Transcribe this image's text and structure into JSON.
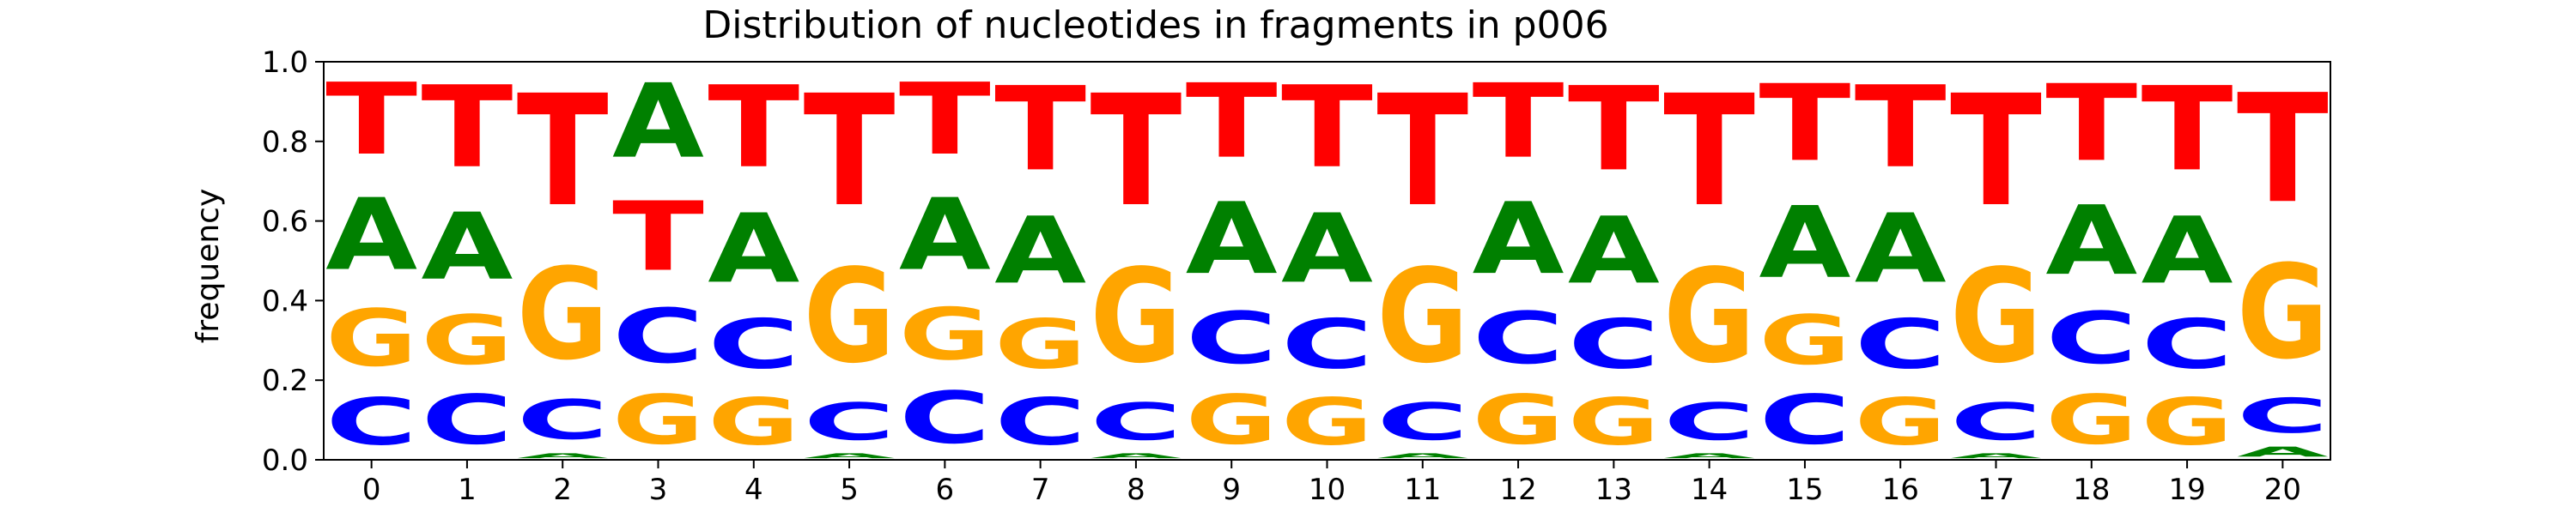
{
  "chart_data": {
    "type": "sequence-logo",
    "title": "Distribution of nucleotides in fragments in p006",
    "xlabel": "",
    "ylabel": "frequency",
    "ylim": [
      0,
      1
    ],
    "yticks": [
      "0.0",
      "0.2",
      "0.4",
      "0.6",
      "0.8",
      "1.0"
    ],
    "grid": false,
    "legend": "none",
    "colors": {
      "A": "#008000",
      "C": "#0000ff",
      "G": "#ffa500",
      "T": "#ff0000"
    },
    "positions": [
      {
        "label": "0",
        "A": 0.29,
        "C": 0.19,
        "G": 0.23,
        "T": 0.29
      },
      {
        "label": "1",
        "A": 0.27,
        "C": 0.2,
        "G": 0.2,
        "T": 0.33
      },
      {
        "label": "2",
        "A": 0.02,
        "C": 0.16,
        "G": 0.37,
        "T": 0.45
      },
      {
        "label": "3",
        "A": 0.3,
        "C": 0.22,
        "G": 0.2,
        "T": 0.28
      },
      {
        "label": "4",
        "A": 0.28,
        "C": 0.2,
        "G": 0.19,
        "T": 0.33
      },
      {
        "label": "5",
        "A": 0.02,
        "C": 0.15,
        "G": 0.38,
        "T": 0.45
      },
      {
        "label": "6",
        "A": 0.29,
        "C": 0.21,
        "G": 0.21,
        "T": 0.29
      },
      {
        "label": "7",
        "A": 0.27,
        "C": 0.19,
        "G": 0.2,
        "T": 0.34
      },
      {
        "label": "8",
        "A": 0.02,
        "C": 0.15,
        "G": 0.38,
        "T": 0.45
      },
      {
        "label": "9",
        "A": 0.29,
        "C": 0.21,
        "G": 0.2,
        "T": 0.3
      },
      {
        "label": "10",
        "A": 0.28,
        "C": 0.2,
        "G": 0.19,
        "T": 0.33
      },
      {
        "label": "11",
        "A": 0.02,
        "C": 0.15,
        "G": 0.38,
        "T": 0.45
      },
      {
        "label": "12",
        "A": 0.29,
        "C": 0.21,
        "G": 0.2,
        "T": 0.3
      },
      {
        "label": "13",
        "A": 0.27,
        "C": 0.2,
        "G": 0.19,
        "T": 0.34
      },
      {
        "label": "14",
        "A": 0.02,
        "C": 0.15,
        "G": 0.38,
        "T": 0.45
      },
      {
        "label": "15",
        "A": 0.29,
        "C": 0.2,
        "G": 0.2,
        "T": 0.31
      },
      {
        "label": "16",
        "A": 0.28,
        "C": 0.2,
        "G": 0.19,
        "T": 0.33
      },
      {
        "label": "17",
        "A": 0.02,
        "C": 0.15,
        "G": 0.38,
        "T": 0.45
      },
      {
        "label": "18",
        "A": 0.28,
        "C": 0.21,
        "G": 0.2,
        "T": 0.31
      },
      {
        "label": "19",
        "A": 0.27,
        "C": 0.2,
        "G": 0.19,
        "T": 0.34
      },
      {
        "label": "20",
        "A": 0.04,
        "C": 0.14,
        "G": 0.38,
        "T": 0.44
      }
    ]
  }
}
